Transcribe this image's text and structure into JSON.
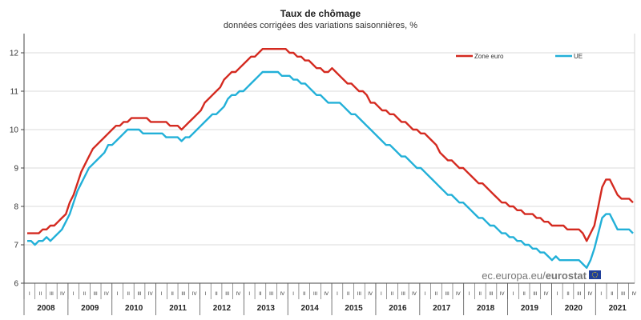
{
  "chart_data": {
    "type": "line",
    "title": "Taux de chômage",
    "subtitle": "données corrigées des variations saisonnières, %",
    "ylim": [
      6,
      12.5
    ],
    "yticks": [
      6,
      7,
      8,
      9,
      10,
      11,
      12
    ],
    "grid": true,
    "legend_position": "top-right",
    "quarter_labels": [
      "I",
      "II",
      "III",
      "IV"
    ],
    "years": [
      "2008",
      "2009",
      "2010",
      "2011",
      "2012",
      "2013",
      "2014",
      "2015",
      "2016",
      "2017",
      "2018",
      "2019",
      "2020",
      "2021"
    ],
    "x": [
      "2008-01",
      "2008-02",
      "2008-03",
      "2008-04",
      "2008-05",
      "2008-06",
      "2008-07",
      "2008-08",
      "2008-09",
      "2008-10",
      "2008-11",
      "2008-12",
      "2009-01",
      "2009-02",
      "2009-03",
      "2009-04",
      "2009-05",
      "2009-06",
      "2009-07",
      "2009-08",
      "2009-09",
      "2009-10",
      "2009-11",
      "2009-12",
      "2010-01",
      "2010-02",
      "2010-03",
      "2010-04",
      "2010-05",
      "2010-06",
      "2010-07",
      "2010-08",
      "2010-09",
      "2010-10",
      "2010-11",
      "2010-12",
      "2011-01",
      "2011-02",
      "2011-03",
      "2011-04",
      "2011-05",
      "2011-06",
      "2011-07",
      "2011-08",
      "2011-09",
      "2011-10",
      "2011-11",
      "2011-12",
      "2012-01",
      "2012-02",
      "2012-03",
      "2012-04",
      "2012-05",
      "2012-06",
      "2012-07",
      "2012-08",
      "2012-09",
      "2012-10",
      "2012-11",
      "2012-12",
      "2013-01",
      "2013-02",
      "2013-03",
      "2013-04",
      "2013-05",
      "2013-06",
      "2013-07",
      "2013-08",
      "2013-09",
      "2013-10",
      "2013-11",
      "2013-12",
      "2014-01",
      "2014-02",
      "2014-03",
      "2014-04",
      "2014-05",
      "2014-06",
      "2014-07",
      "2014-08",
      "2014-09",
      "2014-10",
      "2014-11",
      "2014-12",
      "2015-01",
      "2015-02",
      "2015-03",
      "2015-04",
      "2015-05",
      "2015-06",
      "2015-07",
      "2015-08",
      "2015-09",
      "2015-10",
      "2015-11",
      "2015-12",
      "2016-01",
      "2016-02",
      "2016-03",
      "2016-04",
      "2016-05",
      "2016-06",
      "2016-07",
      "2016-08",
      "2016-09",
      "2016-10",
      "2016-11",
      "2016-12",
      "2017-01",
      "2017-02",
      "2017-03",
      "2017-04",
      "2017-05",
      "2017-06",
      "2017-07",
      "2017-08",
      "2017-09",
      "2017-10",
      "2017-11",
      "2017-12",
      "2018-01",
      "2018-02",
      "2018-03",
      "2018-04",
      "2018-05",
      "2018-06",
      "2018-07",
      "2018-08",
      "2018-09",
      "2018-10",
      "2018-11",
      "2018-12",
      "2019-01",
      "2019-02",
      "2019-03",
      "2019-04",
      "2019-05",
      "2019-06",
      "2019-07",
      "2019-08",
      "2019-09",
      "2019-10",
      "2019-11",
      "2019-12",
      "2020-01",
      "2020-02",
      "2020-03",
      "2020-04",
      "2020-05",
      "2020-06",
      "2020-07",
      "2020-08",
      "2020-09",
      "2020-10",
      "2020-11",
      "2020-12",
      "2021-01",
      "2021-02"
    ],
    "series": [
      {
        "name": "Zone euro",
        "color": "#d42a20",
        "values": [
          7.3,
          7.3,
          7.3,
          7.3,
          7.4,
          7.4,
          7.5,
          7.5,
          7.6,
          7.7,
          7.8,
          8.1,
          8.3,
          8.6,
          8.9,
          9.1,
          9.3,
          9.5,
          9.6,
          9.7,
          9.8,
          9.9,
          10.0,
          10.1,
          10.1,
          10.2,
          10.2,
          10.3,
          10.3,
          10.3,
          10.3,
          10.3,
          10.2,
          10.2,
          10.2,
          10.2,
          10.2,
          10.1,
          10.1,
          10.1,
          10.0,
          10.1,
          10.2,
          10.3,
          10.4,
          10.5,
          10.7,
          10.8,
          10.9,
          11.0,
          11.1,
          11.3,
          11.4,
          11.5,
          11.5,
          11.6,
          11.7,
          11.8,
          11.9,
          11.9,
          12.0,
          12.1,
          12.1,
          12.1,
          12.1,
          12.1,
          12.1,
          12.1,
          12.0,
          12.0,
          11.9,
          11.9,
          11.8,
          11.8,
          11.7,
          11.6,
          11.6,
          11.5,
          11.5,
          11.6,
          11.5,
          11.4,
          11.3,
          11.2,
          11.2,
          11.1,
          11.0,
          11.0,
          10.9,
          10.7,
          10.7,
          10.6,
          10.5,
          10.5,
          10.4,
          10.4,
          10.3,
          10.2,
          10.2,
          10.1,
          10.0,
          10.0,
          9.9,
          9.9,
          9.8,
          9.7,
          9.6,
          9.4,
          9.3,
          9.2,
          9.2,
          9.1,
          9.0,
          9.0,
          8.9,
          8.8,
          8.7,
          8.6,
          8.6,
          8.5,
          8.4,
          8.3,
          8.2,
          8.1,
          8.1,
          8.0,
          8.0,
          7.9,
          7.9,
          7.8,
          7.8,
          7.8,
          7.7,
          7.7,
          7.6,
          7.6,
          7.5,
          7.5,
          7.5,
          7.5,
          7.4,
          7.4,
          7.4,
          7.4,
          7.3,
          7.1,
          7.3,
          7.5,
          8.0,
          8.5,
          8.7,
          8.7,
          8.5,
          8.3,
          8.2,
          8.2,
          8.2,
          8.1
        ]
      },
      {
        "name": "UE",
        "color": "#22b0d8",
        "values": [
          7.1,
          7.1,
          7.0,
          7.1,
          7.1,
          7.2,
          7.1,
          7.2,
          7.3,
          7.4,
          7.6,
          7.8,
          8.1,
          8.4,
          8.6,
          8.8,
          9.0,
          9.1,
          9.2,
          9.3,
          9.4,
          9.6,
          9.6,
          9.7,
          9.8,
          9.9,
          10.0,
          10.0,
          10.0,
          10.0,
          9.9,
          9.9,
          9.9,
          9.9,
          9.9,
          9.9,
          9.8,
          9.8,
          9.8,
          9.8,
          9.7,
          9.8,
          9.8,
          9.9,
          10.0,
          10.1,
          10.2,
          10.3,
          10.4,
          10.4,
          10.5,
          10.6,
          10.8,
          10.9,
          10.9,
          11.0,
          11.0,
          11.1,
          11.2,
          11.3,
          11.4,
          11.5,
          11.5,
          11.5,
          11.5,
          11.5,
          11.4,
          11.4,
          11.4,
          11.3,
          11.3,
          11.2,
          11.2,
          11.1,
          11.0,
          10.9,
          10.9,
          10.8,
          10.7,
          10.7,
          10.7,
          10.7,
          10.6,
          10.5,
          10.4,
          10.4,
          10.3,
          10.2,
          10.1,
          10.0,
          9.9,
          9.8,
          9.7,
          9.6,
          9.6,
          9.5,
          9.4,
          9.3,
          9.3,
          9.2,
          9.1,
          9.0,
          9.0,
          8.9,
          8.8,
          8.7,
          8.6,
          8.5,
          8.4,
          8.3,
          8.3,
          8.2,
          8.1,
          8.1,
          8.0,
          7.9,
          7.8,
          7.7,
          7.7,
          7.6,
          7.5,
          7.5,
          7.4,
          7.3,
          7.3,
          7.2,
          7.2,
          7.1,
          7.1,
          7.0,
          7.0,
          6.9,
          6.9,
          6.8,
          6.8,
          6.7,
          6.6,
          6.7,
          6.6,
          6.6,
          6.6,
          6.6,
          6.6,
          6.6,
          6.5,
          6.4,
          6.6,
          6.9,
          7.3,
          7.7,
          7.8,
          7.8,
          7.6,
          7.4,
          7.4,
          7.4,
          7.4,
          7.3
        ]
      }
    ],
    "source_prefix": "ec.europa.eu/",
    "source_brand": "eurostat"
  }
}
